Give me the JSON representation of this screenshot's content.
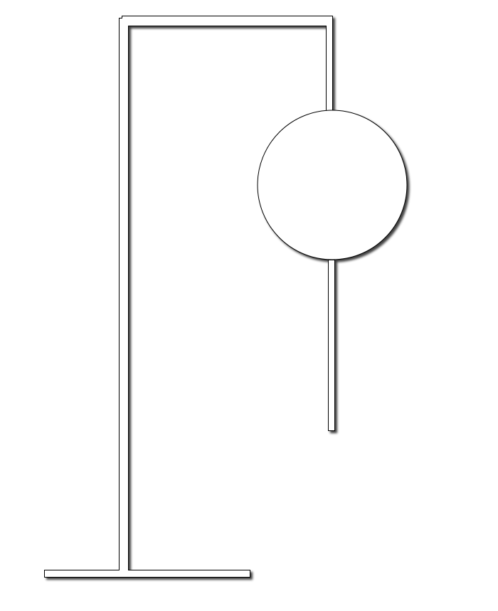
{
  "figure": {
    "description_parts": [
      "base",
      "stand-post",
      "top-arm",
      "drop-rod",
      "globe",
      "lower-rod"
    ],
    "colors": {
      "background": "#ffffff",
      "stroke": "#000000",
      "fill": "#ffffff",
      "shadow": "#000000"
    }
  }
}
